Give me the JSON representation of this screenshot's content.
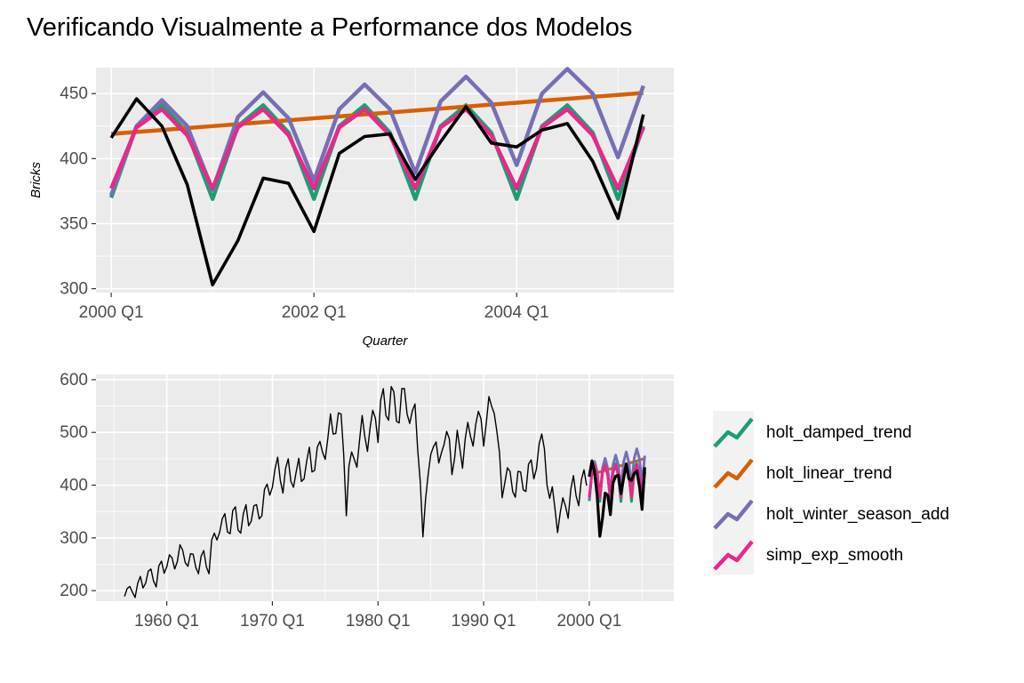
{
  "title": "Verificando Visualmente a Performance dos Modelos",
  "colors": {
    "panel_bg": "#EBEBEB",
    "grid": "#FFFFFF",
    "actual": "#000000",
    "holt_damped_trend": "#1B9E77",
    "holt_linear_trend": "#D95F02",
    "holt_winter_season_add": "#7570B3",
    "simp_exp_smooth": "#E7298A"
  },
  "legend": {
    "position": "right",
    "items": [
      {
        "key": "holt_damped_trend",
        "label": "holt_damped_trend"
      },
      {
        "key": "holt_linear_trend",
        "label": "holt_linear_trend"
      },
      {
        "key": "holt_winter_season_add",
        "label": "holt_winter_season_add"
      },
      {
        "key": "simp_exp_smooth",
        "label": "simp_exp_smooth"
      }
    ]
  },
  "chart_data": [
    {
      "type": "line",
      "panel": "top",
      "xlabel": "Quarter",
      "ylabel": "Bricks",
      "xlim": [
        1999.85,
        2005.55
      ],
      "ylim": [
        297,
        470
      ],
      "xticks": [
        2000,
        2002,
        2004
      ],
      "xtick_labels": [
        "2000 Q1",
        "2002 Q1",
        "2004 Q1"
      ],
      "yticks": [
        300,
        350,
        400,
        450
      ],
      "ytick_labels": [
        "300",
        "350",
        "400",
        "450"
      ],
      "x_start": 2000,
      "x_step": 0.25,
      "series": [
        {
          "name": "holt_damped_trend",
          "values": [
            370,
            425,
            441,
            420,
            369,
            425,
            441,
            420,
            369,
            425,
            441,
            420,
            369,
            425,
            441,
            420,
            369,
            425,
            441,
            420,
            369,
            425
          ]
        },
        {
          "name": "holt_linear_trend",
          "values": [
            419,
            420.5,
            422,
            423.5,
            425,
            426.5,
            428,
            429.5,
            431,
            432.5,
            434,
            435.5,
            437,
            438.5,
            440,
            441.5,
            443,
            444.5,
            446,
            447.5,
            449,
            450.5
          ]
        },
        {
          "name": "holt_winter_season_add",
          "values": [
            372,
            425,
            445,
            425,
            376,
            432,
            451,
            431,
            383,
            438,
            457,
            438,
            389,
            444,
            463,
            443,
            395,
            450,
            469,
            450,
            401,
            456
          ]
        },
        {
          "name": "simp_exp_smooth",
          "values": [
            377,
            424,
            438,
            418,
            377,
            424,
            438,
            418,
            377,
            424,
            438,
            418,
            377,
            424,
            438,
            418,
            377,
            424,
            438,
            418,
            377,
            424
          ]
        },
        {
          "name": "Actual",
          "values": [
            416,
            446,
            425,
            380,
            303,
            337,
            385,
            381,
            344,
            404,
            417,
            419,
            384,
            413,
            440,
            412,
            409,
            422,
            427,
            398,
            354,
            434
          ]
        }
      ]
    },
    {
      "type": "line",
      "panel": "bottom",
      "xlabel": "",
      "ylabel": "",
      "xlim": [
        1953.3,
        2008.0
      ],
      "ylim": [
        180,
        610
      ],
      "xticks": [
        1960,
        1970,
        1980,
        1990,
        2000
      ],
      "xtick_labels": [
        "1960 Q1",
        "1970 Q1",
        "1980 Q1",
        "1990 Q1",
        "2000 Q1"
      ],
      "yticks": [
        200,
        300,
        400,
        500,
        600
      ],
      "ytick_labels": [
        "200",
        "300",
        "400",
        "500",
        "600"
      ],
      "history": {
        "x_start": 1956,
        "x_step": 0.25,
        "values": [
          189,
          204,
          208,
          197,
          187,
          214,
          227,
          205,
          214,
          237,
          241,
          218,
          207,
          247,
          256,
          233,
          245,
          268,
          262,
          241,
          255,
          287,
          277,
          253,
          246,
          270,
          269,
          244,
          232,
          265,
          276,
          245,
          232,
          296,
          309,
          296,
          310,
          336,
          346,
          311,
          308,
          352,
          359,
          315,
          309,
          346,
          363,
          323,
          332,
          361,
          363,
          336,
          342,
          392,
          402,
          381,
          396,
          431,
          453,
          409,
          385,
          432,
          450,
          407,
          396,
          425,
          451,
          407,
          412,
          446,
          472,
          425,
          428,
          472,
          483,
          462,
          449,
          489,
          535,
          497,
          498,
          537,
          535,
          458,
          342,
          437,
          463,
          449,
          434,
          485,
          532,
          492,
          464,
          509,
          542,
          527,
          481,
          561,
          583,
          532,
          523,
          587,
          577,
          521,
          518,
          583,
          583,
          535,
          517,
          541,
          554,
          469,
          406,
          302,
          373,
          421,
          459,
          473,
          482,
          442,
          461,
          477,
          502,
          488,
          420,
          451,
          504,
          469,
          432,
          487,
          519,
          493,
          474,
          515,
          540,
          526,
          474,
          518,
          568,
          550,
          536,
          502,
          462,
          376,
          404,
          433,
          426,
          388,
          377,
          426,
          425,
          391,
          388,
          440,
          448,
          412,
          431,
          478,
          497,
          469,
          400,
          375,
          397,
          356,
          310,
          348,
          376,
          360,
          337,
          392,
          418,
          380,
          361,
          410,
          429,
          399
        ]
      },
      "overlay_note": "forecast series and Actual drawn from the top panel data over 2000 Q1 to 2005 Q2"
    }
  ]
}
